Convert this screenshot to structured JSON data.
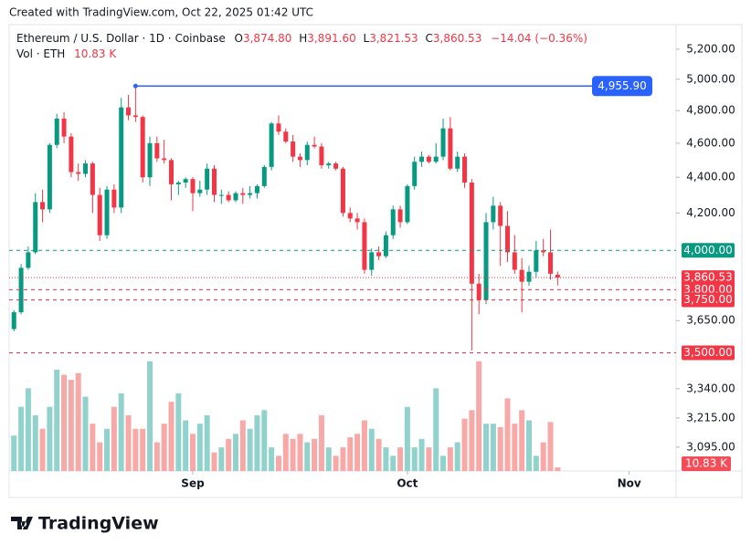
{
  "header": {
    "caption": "Created with TradingView.com, Oct 22, 2025 01:42 UTC",
    "logo": "TradingView"
  },
  "legend": {
    "symbol": "Ethereum / U.S. Dollar · 1D · Coinbase",
    "o_key": "O",
    "o": "3,874.80",
    "h_key": "H",
    "h": "3,891.60",
    "l_key": "L",
    "l": "3,821.53",
    "c_key": "C",
    "c": "3,860.53",
    "change": "−14.04 (−0.36%)",
    "vol_key": "Vol · ETH",
    "vol": "10.83 K"
  },
  "chart_data": {
    "type": "candlestick",
    "log_scale": true,
    "up_color": "#089981",
    "down_color": "#f23645",
    "up_volume_color": "#92d2cc",
    "down_volume_color": "#f7a9a7",
    "open": [
      3610,
      3690,
      3910,
      3990,
      4260,
      4220,
      4590,
      4750,
      4640,
      4430,
      4420,
      4480,
      4300,
      4080,
      4330,
      4230,
      4820,
      4770,
      4760,
      4400,
      4600,
      4510,
      4500,
      4360,
      4370,
      4390,
      4310,
      4330,
      4450,
      4300,
      4300,
      4270,
      4310,
      4300,
      4310,
      4350,
      4460,
      4720,
      4670,
      4610,
      4520,
      4500,
      4590,
      4580,
      4470,
      4480,
      4450,
      4200,
      4170,
      4150,
      3900,
      3990,
      3970,
      4080,
      4220,
      4150,
      4350,
      4490,
      4520,
      4490,
      4520,
      4690,
      4450,
      4520,
      4370,
      3830,
      3750,
      4150,
      4240,
      4130,
      3990,
      3900,
      3840,
      3890,
      4000,
      3990,
      3874.8
    ],
    "high": [
      3700,
      3930,
      4020,
      4310,
      4330,
      4600,
      4780,
      4790,
      4660,
      4480,
      4500,
      4490,
      4340,
      4350,
      4360,
      4880,
      4900,
      4955.9,
      4770,
      4640,
      4640,
      4620,
      4510,
      4380,
      4400,
      4400,
      4380,
      4480,
      4470,
      4330,
      4320,
      4320,
      4340,
      4350,
      4360,
      4470,
      4730,
      4770,
      4690,
      4650,
      4540,
      4610,
      4640,
      4600,
      4490,
      4490,
      4460,
      4230,
      4200,
      4170,
      4010,
      4020,
      4100,
      4240,
      4240,
      4360,
      4520,
      4550,
      4530,
      4600,
      4750,
      4760,
      4550,
      4540,
      4390,
      3880,
      4200,
      4290,
      4260,
      4210,
      4080,
      3960,
      3920,
      4050,
      4060,
      4110,
      3891.6
    ],
    "low": [
      3600,
      3680,
      3900,
      3980,
      4150,
      4200,
      4570,
      4600,
      4400,
      4380,
      4400,
      4200,
      4050,
      4060,
      4200,
      4200,
      4740,
      4730,
      4370,
      4350,
      4490,
      4480,
      4270,
      4300,
      4340,
      4210,
      4290,
      4300,
      4260,
      4250,
      4260,
      4260,
      4250,
      4280,
      4280,
      4340,
      4440,
      4650,
      4600,
      4490,
      4460,
      4470,
      4570,
      4450,
      4450,
      4440,
      4180,
      4150,
      4110,
      3880,
      3870,
      3950,
      3960,
      4060,
      4120,
      4140,
      4330,
      4460,
      4480,
      4480,
      4500,
      4440,
      4430,
      4340,
      3510,
      3680,
      3730,
      4110,
      3920,
      3940,
      3880,
      3690,
      3820,
      3860,
      3970,
      3850,
      3821.53
    ],
    "close": [
      3690,
      3910,
      3990,
      4260,
      4220,
      4590,
      4750,
      4640,
      4430,
      4420,
      4480,
      4300,
      4080,
      4330,
      4230,
      4820,
      4770,
      4760,
      4400,
      4600,
      4510,
      4500,
      4360,
      4370,
      4390,
      4310,
      4330,
      4450,
      4300,
      4300,
      4270,
      4310,
      4300,
      4310,
      4350,
      4460,
      4720,
      4670,
      4610,
      4520,
      4500,
      4590,
      4580,
      4470,
      4480,
      4450,
      4200,
      4170,
      4150,
      3900,
      3990,
      3970,
      4080,
      4220,
      4150,
      4350,
      4490,
      4520,
      4490,
      4520,
      4690,
      4450,
      4520,
      4370,
      3830,
      3750,
      4150,
      4240,
      4130,
      3990,
      3900,
      3840,
      3890,
      4000,
      3990,
      3880,
      3860.53
    ],
    "volume": [
      105,
      190,
      245,
      165,
      125,
      190,
      300,
      285,
      270,
      290,
      220,
      140,
      85,
      125,
      190,
      230,
      165,
      125,
      125,
      325,
      85,
      140,
      205,
      230,
      150,
      110,
      140,
      165,
      55,
      70,
      95,
      110,
      150,
      125,
      165,
      180,
      70,
      45,
      110,
      95,
      110,
      85,
      95,
      165,
      70,
      45,
      70,
      100,
      110,
      150,
      125,
      95,
      70,
      45,
      70,
      190,
      70,
      95,
      70,
      245,
      45,
      70,
      85,
      155,
      180,
      325,
      140,
      140,
      130,
      215,
      140,
      180,
      150,
      45,
      85,
      145,
      10.83
    ],
    "volume_ylim": [
      0,
      400
    ],
    "xlim": [
      -0.67,
      92.56
    ],
    "xticks": [
      {
        "value": 25,
        "label": "Sep"
      },
      {
        "value": 55,
        "label": "Oct"
      },
      {
        "value": 86,
        "label": "Nov"
      }
    ],
    "ylim": [
      3000,
      5350
    ],
    "yticks": [
      {
        "value": 5200,
        "label": "5,200.00"
      },
      {
        "value": 5000,
        "label": "5,000.00"
      },
      {
        "value": 4800,
        "label": "4,800.00"
      },
      {
        "value": 4600,
        "label": "4,600.00"
      },
      {
        "value": 4400,
        "label": "4,400.00"
      },
      {
        "value": 4200,
        "label": "4,200.00"
      },
      {
        "value": 3650,
        "label": "3,650.00"
      },
      {
        "value": 3340,
        "label": "3,340.00"
      },
      {
        "value": 3215,
        "label": "3,215.00"
      },
      {
        "value": 3095,
        "label": "3,095.00"
      }
    ],
    "price_lines": [
      {
        "value": 4000,
        "label": "4,000.00",
        "color": "#089981",
        "dash": "4 4"
      },
      {
        "value": 3860.53,
        "label": "3,860.53",
        "color": "#f23645",
        "dash": "1 2"
      },
      {
        "value": 3800,
        "label": "3,800.00",
        "color": "#f23645",
        "dash": "4 4"
      },
      {
        "value": 3750,
        "label": "3,750.00",
        "color": "#f23645",
        "dash": "4 4"
      },
      {
        "value": 3500,
        "label": "3,500.00",
        "color": "#f23645",
        "dash": "4 4"
      }
    ],
    "ray": {
      "value": 4955.9,
      "label": "4,955.90",
      "start": 17,
      "color": "#2962ff"
    },
    "volume_badge": "10.83 K"
  }
}
